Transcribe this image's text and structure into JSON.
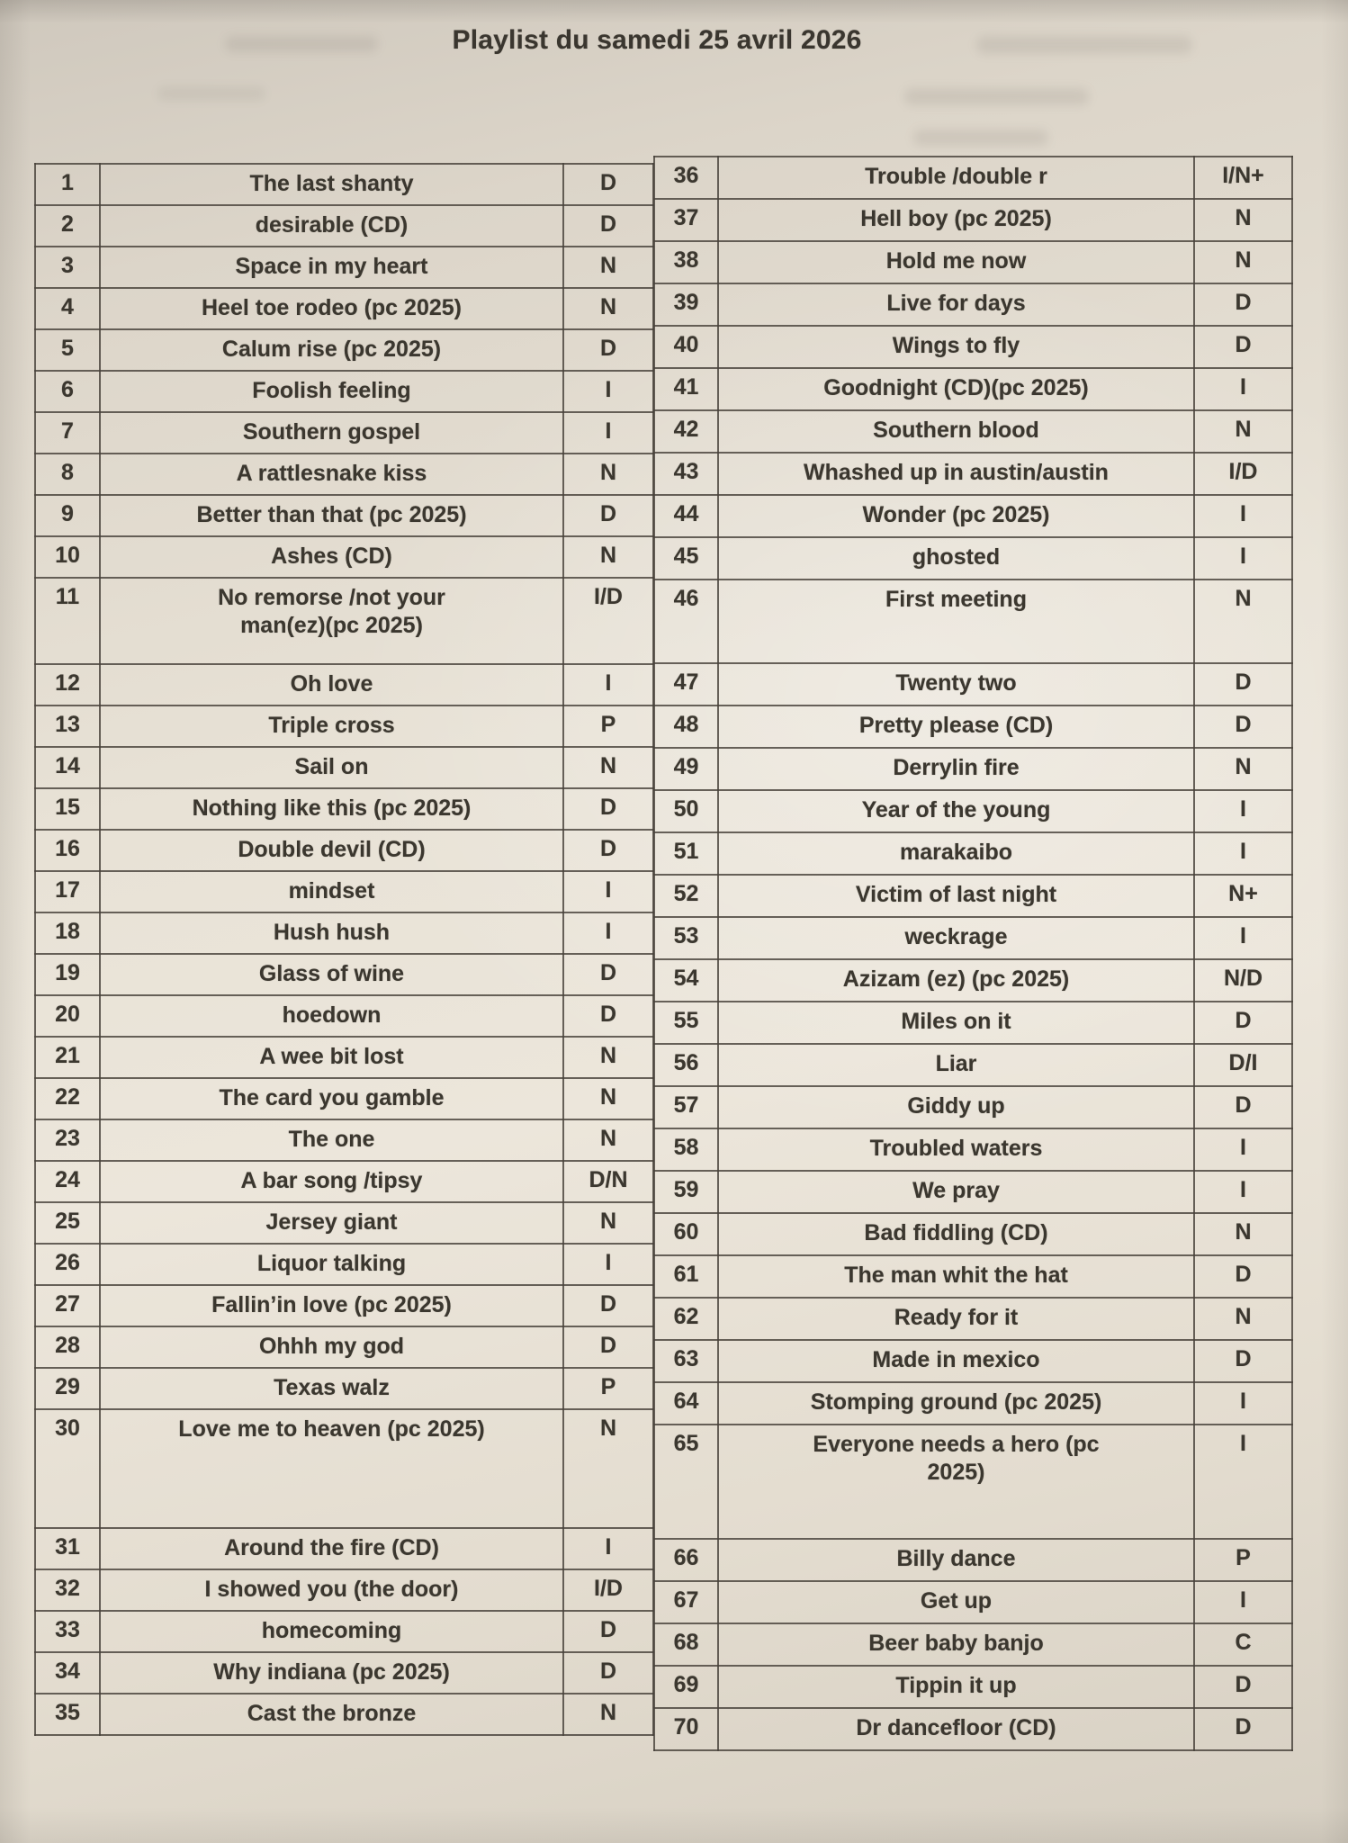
{
  "title": "Playlist du samedi 25 avril 2026",
  "table": {
    "left": [
      {
        "num": "1",
        "title": "The last shanty",
        "code": "D"
      },
      {
        "num": "2",
        "title": "desirable (CD)",
        "code": "D"
      },
      {
        "num": "3",
        "title": "Space in my heart",
        "code": "N"
      },
      {
        "num": "4",
        "title": "Heel toe rodeo (pc 2025)",
        "code": "N"
      },
      {
        "num": "5",
        "title": "Calum rise (pc 2025)",
        "code": "D"
      },
      {
        "num": "6",
        "title": "Foolish feeling",
        "code": "I"
      },
      {
        "num": "7",
        "title": "Southern gospel",
        "code": "I"
      },
      {
        "num": "8",
        "title": "A rattlesnake kiss",
        "code": "N"
      },
      {
        "num": "9",
        "title": "Better than that (pc 2025)",
        "code": "D"
      },
      {
        "num": "10",
        "title": "Ashes (CD)",
        "code": "N"
      },
      {
        "num": "11",
        "title": "No remorse /not your\nman(ez)(pc 2025)",
        "code": "I/D"
      },
      {
        "num": "12",
        "title": "Oh love",
        "code": "I"
      },
      {
        "num": "13",
        "title": "Triple cross",
        "code": "P"
      },
      {
        "num": "14",
        "title": "Sail on",
        "code": "N"
      },
      {
        "num": "15",
        "title": "Nothing like this (pc 2025)",
        "code": "D"
      },
      {
        "num": "16",
        "title": "Double devil (CD)",
        "code": "D"
      },
      {
        "num": "17",
        "title": "mindset",
        "code": "I"
      },
      {
        "num": "18",
        "title": "Hush hush",
        "code": "I"
      },
      {
        "num": "19",
        "title": "Glass of wine",
        "code": "D"
      },
      {
        "num": "20",
        "title": "hoedown",
        "code": "D"
      },
      {
        "num": "21",
        "title": "A wee bit lost",
        "code": "N"
      },
      {
        "num": "22",
        "title": "The card you gamble",
        "code": "N"
      },
      {
        "num": "23",
        "title": "The one",
        "code": "N"
      },
      {
        "num": "24",
        "title": "A bar song /tipsy",
        "code": "D/N"
      },
      {
        "num": "25",
        "title": "Jersey giant",
        "code": "N"
      },
      {
        "num": "26",
        "title": "Liquor talking",
        "code": "I"
      },
      {
        "num": "27",
        "title": "Fallin’in love (pc 2025)",
        "code": "D"
      },
      {
        "num": "28",
        "title": "Ohhh my god",
        "code": "D"
      },
      {
        "num": "29",
        "title": "Texas walz",
        "code": "P"
      },
      {
        "num": "30",
        "title": "Love me to heaven (pc 2025)",
        "code": "N"
      },
      {
        "num": "31",
        "title": "Around the fire (CD)",
        "code": "I"
      },
      {
        "num": "32",
        "title": "I showed you (the door)",
        "code": "I/D"
      },
      {
        "num": "33",
        "title": "homecoming",
        "code": "D"
      },
      {
        "num": "34",
        "title": "Why indiana (pc 2025)",
        "code": "D"
      },
      {
        "num": "35",
        "title": "Cast the bronze",
        "code": "N"
      }
    ],
    "right": [
      {
        "num": "36",
        "title": "Trouble /double r",
        "code": "I/N+"
      },
      {
        "num": "37",
        "title": "Hell boy (pc 2025)",
        "code": "N"
      },
      {
        "num": "38",
        "title": "Hold me now",
        "code": "N"
      },
      {
        "num": "39",
        "title": "Live for days",
        "code": "D"
      },
      {
        "num": "40",
        "title": "Wings to fly",
        "code": "D"
      },
      {
        "num": "41",
        "title": "Goodnight (CD)(pc 2025)",
        "code": "I"
      },
      {
        "num": "42",
        "title": "Southern blood",
        "code": "N"
      },
      {
        "num": "43",
        "title": "Whashed up in austin/austin",
        "code": "I/D"
      },
      {
        "num": "44",
        "title": "Wonder (pc 2025)",
        "code": "I"
      },
      {
        "num": "45",
        "title": "ghosted",
        "code": "I"
      },
      {
        "num": "46",
        "title": "First meeting",
        "code": "N"
      },
      {
        "num": "47",
        "title": "Twenty two",
        "code": "D"
      },
      {
        "num": "48",
        "title": "Pretty please (CD)",
        "code": "D"
      },
      {
        "num": "49",
        "title": "Derrylin fire",
        "code": "N"
      },
      {
        "num": "50",
        "title": "Year of the young",
        "code": "I"
      },
      {
        "num": "51",
        "title": "marakaibo",
        "code": "I"
      },
      {
        "num": "52",
        "title": "Victim of last night",
        "code": "N+"
      },
      {
        "num": "53",
        "title": "weckrage",
        "code": "I"
      },
      {
        "num": "54",
        "title": "Azizam (ez) (pc 2025)",
        "code": "N/D"
      },
      {
        "num": "55",
        "title": "Miles on it",
        "code": "D"
      },
      {
        "num": "56",
        "title": "Liar",
        "code": "D/I"
      },
      {
        "num": "57",
        "title": "Giddy up",
        "code": "D"
      },
      {
        "num": "58",
        "title": "Troubled waters",
        "code": "I"
      },
      {
        "num": "59",
        "title": "We pray",
        "code": "I"
      },
      {
        "num": "60",
        "title": "Bad fiddling (CD)",
        "code": "N"
      },
      {
        "num": "61",
        "title": "The man whit the hat",
        "code": "D"
      },
      {
        "num": "62",
        "title": "Ready for it",
        "code": "N"
      },
      {
        "num": "63",
        "title": "Made in mexico",
        "code": "D"
      },
      {
        "num": "64",
        "title": "Stomping ground (pc 2025)",
        "code": "I"
      },
      {
        "num": "65",
        "title": "Everyone needs a hero (pc\n2025)",
        "code": "I"
      },
      {
        "num": "66",
        "title": "Billy dance",
        "code": "P"
      },
      {
        "num": "67",
        "title": "Get up",
        "code": "I"
      },
      {
        "num": "68",
        "title": "Beer baby banjo",
        "code": "C"
      },
      {
        "num": "69",
        "title": "Tippin it up",
        "code": "D"
      },
      {
        "num": "70",
        "title": "Dr dancefloor (CD)",
        "code": "D"
      }
    ]
  }
}
